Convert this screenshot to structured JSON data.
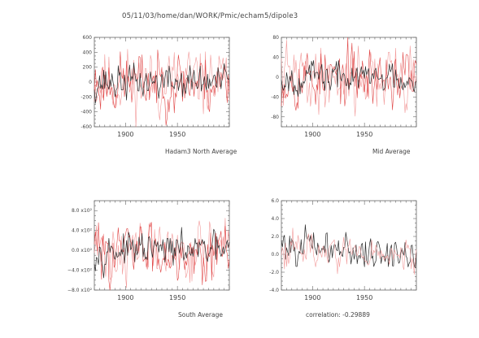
{
  "header": {
    "path": "05/11/03/home/dan/WORK/Pmic/echam5/dipole3"
  },
  "colors": {
    "light": "#f29a9a",
    "medium": "#e04646",
    "dark": "#2a2a2a",
    "axis": "#666666"
  },
  "chart_data": [
    {
      "id": "north",
      "type": "line",
      "caption": "Hadam3 North Average",
      "x_range": [
        1870,
        2000
      ],
      "ylim": [
        -600,
        600
      ],
      "yticks": [
        600,
        400,
        200,
        0,
        -200,
        -400,
        -600
      ],
      "ytick_labels": [
        "600",
        "400",
        "200",
        "0",
        "-200",
        "-400",
        "-600"
      ],
      "xticks": [
        1900,
        1950
      ],
      "xtick_labels": [
        "1900",
        "1950"
      ],
      "series": [
        {
          "role": "light",
          "amplitude": 210,
          "seed": 11
        },
        {
          "role": "medium",
          "amplitude": 190,
          "seed": 23
        },
        {
          "role": "dark",
          "amplitude": 110,
          "seed": 37
        }
      ]
    },
    {
      "id": "mid",
      "type": "line",
      "caption": "Mid Average",
      "x_range": [
        1870,
        2000
      ],
      "ylim": [
        -100,
        80
      ],
      "yticks": [
        80,
        40,
        0,
        -40,
        -80
      ],
      "ytick_labels": [
        "80",
        "40",
        "0",
        "-40",
        "-80"
      ],
      "xticks": [
        1900,
        1950
      ],
      "xtick_labels": [
        "1900",
        "1950"
      ],
      "series": [
        {
          "role": "light",
          "amplitude": 30,
          "seed": 41
        },
        {
          "role": "medium",
          "amplitude": 28,
          "seed": 53
        },
        {
          "role": "dark",
          "amplitude": 15,
          "seed": 67
        }
      ]
    },
    {
      "id": "south",
      "type": "line",
      "caption": "South Average",
      "x_range": [
        1870,
        2000
      ],
      "ylim": [
        -800,
        1000
      ],
      "yticks": [
        800,
        400,
        0,
        -400,
        -800
      ],
      "ytick_labels": [
        "8.0 x10²",
        "4.0 x10²",
        "0.0 x10²",
        "−4.0 x10²",
        "−8.0 x10²"
      ],
      "xticks": [
        1900,
        1950
      ],
      "xtick_labels": [
        "1900",
        "1950"
      ],
      "series": [
        {
          "role": "light",
          "amplitude": 300,
          "seed": 71
        },
        {
          "role": "medium",
          "amplitude": 270,
          "seed": 83
        },
        {
          "role": "dark",
          "amplitude": 150,
          "seed": 97
        }
      ]
    },
    {
      "id": "correlation",
      "type": "line",
      "caption": "correlation: -0.29889",
      "x_range": [
        1870,
        2000
      ],
      "ylim": [
        -4,
        6
      ],
      "yticks": [
        6,
        4,
        2,
        0,
        -2,
        -4
      ],
      "ytick_labels": [
        "6.0",
        "4.0",
        "2.0",
        "0.0",
        "-2.0",
        "-4.0"
      ],
      "xticks": [
        1900,
        1950
      ],
      "xtick_labels": [
        "1900",
        "1950"
      ],
      "series": [
        {
          "role": "dark",
          "amplitude": 0.9,
          "seed": 101,
          "trend": [
            1.2,
            -0.3
          ]
        },
        {
          "role": "light",
          "amplitude": 0.9,
          "seed": 113,
          "trend": [
            0.8,
            -0.5
          ]
        }
      ]
    }
  ]
}
